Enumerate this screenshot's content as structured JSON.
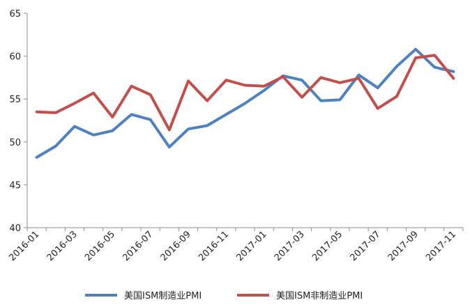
{
  "chart_data": {
    "type": "line",
    "title": "",
    "xlabel": "",
    "ylabel": "",
    "ylim": [
      40,
      65
    ],
    "yticks": [
      40,
      45,
      50,
      55,
      60,
      65
    ],
    "grid": false,
    "legend_position": "bottom",
    "categories": [
      "2016-01",
      "2016-02",
      "2016-03",
      "2016-04",
      "2016-05",
      "2016-06",
      "2016-07",
      "2016-08",
      "2016-09",
      "2016-10",
      "2016-11",
      "2016-12",
      "2017-01",
      "2017-02",
      "2017-03",
      "2017-04",
      "2017-05",
      "2017-06",
      "2017-07",
      "2017-08",
      "2017-09",
      "2017-10",
      "2017-11"
    ],
    "tick_labels": [
      "2016-01",
      "2016-03",
      "2016-05",
      "2016-07",
      "2016-09",
      "2016-11",
      "2017-01",
      "2017-03",
      "2017-05",
      "2017-07",
      "2017-09",
      "2017-11"
    ],
    "series": [
      {
        "name": "美国ISM制造业PMI",
        "color": "#4f81bd",
        "values": [
          48.2,
          49.5,
          51.8,
          50.8,
          51.3,
          53.2,
          52.6,
          49.4,
          51.5,
          51.9,
          53.2,
          54.5,
          56.0,
          57.7,
          57.2,
          54.8,
          54.9,
          57.8,
          56.3,
          58.8,
          60.8,
          58.7,
          58.2
        ]
      },
      {
        "name": "美国ISM非制造业PMI",
        "color": "#c0504d",
        "values": [
          53.5,
          53.4,
          54.5,
          55.7,
          52.9,
          56.5,
          55.5,
          51.4,
          57.1,
          54.8,
          57.2,
          56.6,
          56.5,
          57.6,
          55.2,
          57.5,
          56.9,
          57.4,
          53.9,
          55.3,
          59.8,
          60.1,
          57.4
        ]
      }
    ]
  }
}
